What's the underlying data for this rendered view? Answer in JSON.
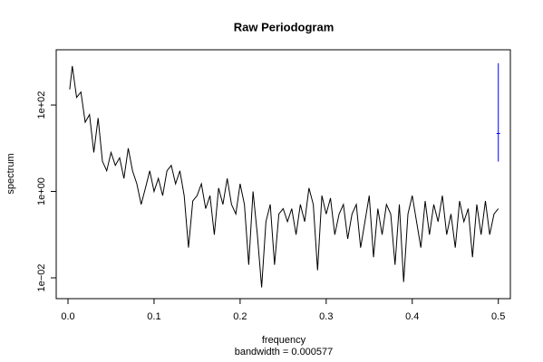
{
  "chart_data": {
    "type": "line",
    "title": "Raw Periodogram",
    "xlabel": "frequency",
    "subtitle": "bandwidth = 0.000577",
    "ylabel": "spectrum",
    "log_y": true,
    "xlim": [
      -0.0137,
      0.514
    ],
    "ylim": [
      0.0033,
      1900
    ],
    "xticks": [
      {
        "value": 0,
        "label": "0.0"
      },
      0.1,
      0.2,
      0.3,
      0.4,
      0.5
    ],
    "yticks": [
      {
        "value": 0.01,
        "label": "1e−02"
      },
      {
        "value": 1,
        "label": "1e+00"
      },
      {
        "value": 100,
        "label": "1e+02"
      }
    ],
    "x": [
      0.002,
      0.005,
      0.01,
      0.015,
      0.02,
      0.025,
      0.03,
      0.035,
      0.04,
      0.045,
      0.05,
      0.055,
      0.06,
      0.065,
      0.07,
      0.075,
      0.08,
      0.085,
      0.09,
      0.095,
      0.1,
      0.105,
      0.11,
      0.115,
      0.12,
      0.125,
      0.13,
      0.135,
      0.14,
      0.145,
      0.15,
      0.155,
      0.16,
      0.165,
      0.17,
      0.175,
      0.18,
      0.185,
      0.19,
      0.195,
      0.2,
      0.205,
      0.21,
      0.215,
      0.22,
      0.225,
      0.23,
      0.235,
      0.24,
      0.245,
      0.25,
      0.255,
      0.26,
      0.265,
      0.27,
      0.275,
      0.28,
      0.285,
      0.29,
      0.295,
      0.3,
      0.305,
      0.31,
      0.315,
      0.32,
      0.325,
      0.33,
      0.335,
      0.34,
      0.345,
      0.35,
      0.355,
      0.36,
      0.365,
      0.37,
      0.375,
      0.38,
      0.385,
      0.39,
      0.395,
      0.4,
      0.405,
      0.41,
      0.415,
      0.42,
      0.425,
      0.43,
      0.435,
      0.44,
      0.445,
      0.45,
      0.455,
      0.46,
      0.465,
      0.47,
      0.475,
      0.48,
      0.485,
      0.49,
      0.495,
      0.5
    ],
    "series": [
      {
        "color": "#000000",
        "values": [
          230,
          800,
          150,
          200,
          40,
          60,
          8,
          50,
          5,
          3,
          8,
          4,
          6,
          2,
          10,
          3,
          1.5,
          0.5,
          1.2,
          3,
          1,
          2,
          0.8,
          3,
          4,
          1.5,
          3,
          0.8,
          0.05,
          0.6,
          0.8,
          1.5,
          0.4,
          0.8,
          0.1,
          1.2,
          0.5,
          2,
          0.5,
          0.3,
          1.5,
          0.5,
          0.02,
          1,
          0.1,
          0.006,
          0.2,
          0.5,
          0.02,
          0.3,
          0.4,
          0.2,
          0.4,
          0.1,
          0.5,
          0.2,
          1.2,
          0.5,
          0.015,
          0.8,
          0.3,
          0.7,
          0.1,
          0.3,
          0.5,
          0.08,
          0.3,
          0.5,
          0.05,
          0.2,
          0.8,
          0.03,
          0.4,
          0.1,
          0.5,
          0.3,
          0.02,
          0.5,
          0.008,
          0.3,
          0.8,
          0.2,
          0.05,
          0.6,
          0.1,
          0.5,
          0.2,
          0.8,
          0.1,
          0.3,
          0.05,
          0.6,
          0.2,
          0.4,
          0.03,
          0.5,
          0.1,
          0.6,
          0.1,
          0.3,
          0.4
        ]
      }
    ],
    "ci_bar": {
      "x": 0.5,
      "low": 4.9,
      "center": 22,
      "high": 930,
      "color": "#0000ff"
    }
  }
}
